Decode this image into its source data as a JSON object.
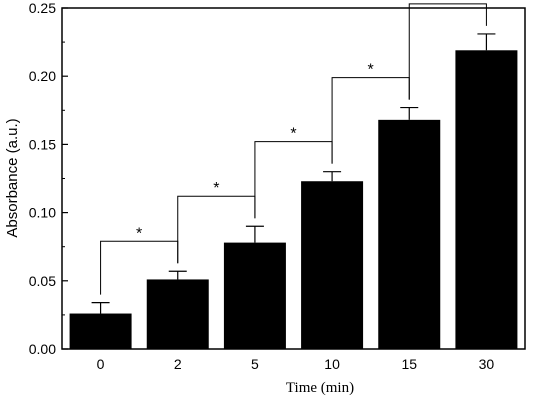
{
  "chart_data": {
    "type": "bar",
    "xlabel": "Time (min)",
    "ylabel": "Absorbance (a.u.)",
    "categories": [
      "0",
      "2",
      "5",
      "10",
      "15",
      "30"
    ],
    "values": [
      0.026,
      0.051,
      0.078,
      0.123,
      0.168,
      0.219
    ],
    "errors": [
      0.008,
      0.006,
      0.012,
      0.007,
      0.009,
      0.012
    ],
    "ylim": [
      0,
      0.25
    ],
    "yticks": [
      "0.00",
      "0.05",
      "0.10",
      "0.15",
      "0.20",
      "0.25"
    ],
    "bar_color": "#000000",
    "grid": false,
    "significance": [
      {
        "from": "0",
        "to": "2",
        "label": "*"
      },
      {
        "from": "2",
        "to": "5",
        "label": "*"
      },
      {
        "from": "5",
        "to": "10",
        "label": "*"
      },
      {
        "from": "10",
        "to": "15",
        "label": "*"
      },
      {
        "from": "15",
        "to": "30",
        "label": "*"
      }
    ]
  }
}
